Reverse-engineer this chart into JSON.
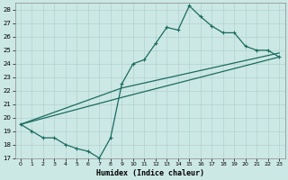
{
  "xlabel": "Humidex (Indice chaleur)",
  "background_color": "#cce8e4",
  "grid_color": "#aacccc",
  "line_color": "#1a6b60",
  "xlim": [
    -0.5,
    23.5
  ],
  "ylim": [
    17,
    28.5
  ],
  "yticks": [
    17,
    18,
    19,
    20,
    21,
    22,
    23,
    24,
    25,
    26,
    27,
    28
  ],
  "xticks": [
    0,
    1,
    2,
    3,
    4,
    5,
    6,
    7,
    8,
    9,
    10,
    11,
    12,
    13,
    14,
    15,
    16,
    17,
    18,
    19,
    20,
    21,
    22,
    23
  ],
  "zigzag_x": [
    0,
    1,
    2,
    3,
    4,
    5,
    6,
    7,
    8,
    9,
    10,
    11,
    12,
    13,
    14,
    15,
    16,
    17,
    18,
    19,
    20,
    21,
    22,
    23
  ],
  "zigzag_y": [
    19.5,
    19.0,
    18.5,
    18.5,
    18.0,
    17.7,
    17.5,
    17.0,
    18.5,
    22.5,
    24.0,
    24.3,
    25.5,
    26.7,
    26.5,
    28.3,
    27.5,
    26.8,
    26.3,
    26.3,
    25.3,
    25.0,
    25.0,
    24.5
  ],
  "line2_x": [
    0,
    9,
    23
  ],
  "line2_y": [
    19.5,
    22.2,
    24.8
  ],
  "line3_x": [
    0,
    9,
    23
  ],
  "line3_y": [
    19.5,
    21.5,
    24.5
  ]
}
